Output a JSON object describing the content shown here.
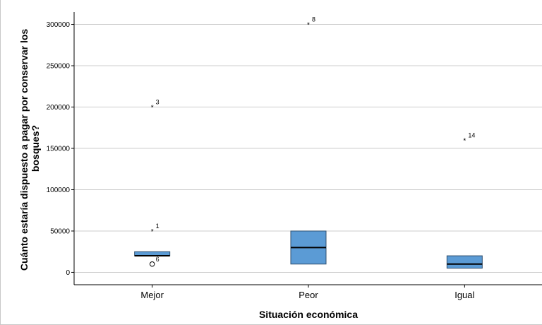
{
  "chart_data": {
    "type": "boxplot",
    "title": "",
    "xlabel": "Situación económica",
    "ylabel_lines": [
      "Cuánto estaría dispuesto a pagar por conservar los",
      "bosques?"
    ],
    "ylim": [
      -15000,
      315000
    ],
    "yticks": [
      0,
      50000,
      100000,
      150000,
      200000,
      250000,
      300000
    ],
    "ytick_labels": [
      "0",
      "50000",
      "100000",
      "150000",
      "200000",
      "250000",
      "300000"
    ],
    "grid": "horizontal",
    "colors": {
      "box_fill": "#5b9bd5",
      "box_edge": "#2f4f6f",
      "grid": "#cccccc",
      "axis": "#000000"
    },
    "categories": [
      "Mejor",
      "Peor",
      "Igual"
    ],
    "boxes": [
      {
        "category": "Mejor",
        "q1": 20000,
        "median": 20000,
        "q3": 25000,
        "whisker_low": 20000,
        "whisker_high": 25000,
        "outliers": [
          {
            "id": "3",
            "value": 200000,
            "marker": "star"
          },
          {
            "id": "1",
            "value": 50000,
            "marker": "star"
          },
          {
            "id": "6",
            "value": 10000,
            "marker": "circle"
          }
        ]
      },
      {
        "category": "Peor",
        "q1": 10000,
        "median": 30000,
        "q3": 50000,
        "whisker_low": 10000,
        "whisker_high": 50000,
        "outliers": [
          {
            "id": "8",
            "value": 300000,
            "marker": "star"
          }
        ]
      },
      {
        "category": "Igual",
        "q1": 5000,
        "median": 10000,
        "q3": 20000,
        "whisker_low": 5000,
        "whisker_high": 20000,
        "outliers": [
          {
            "id": "14",
            "value": 160000,
            "marker": "star"
          }
        ]
      }
    ]
  }
}
